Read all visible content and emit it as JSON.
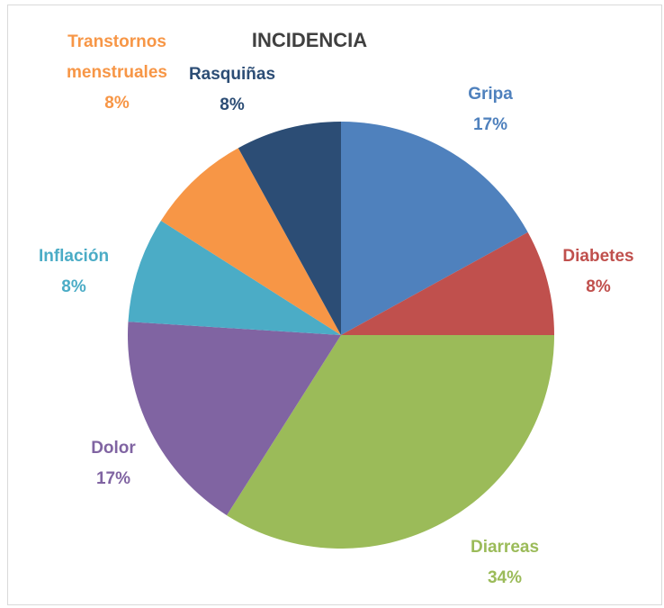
{
  "chart_data": {
    "type": "pie",
    "title": "INCIDENCIA",
    "categories": [
      "Gripa",
      "Diabetes",
      "Diarreas",
      "Dolor",
      "Inflación",
      "Transtornos menstruales",
      "Rasquiñas"
    ],
    "values": [
      17,
      8,
      34,
      17,
      8,
      8,
      8
    ],
    "value_labels": [
      "17%",
      "8%",
      "34%",
      "17%",
      "8%",
      "8%",
      "8%"
    ],
    "colors": [
      "#4f81bd",
      "#c0504d",
      "#9bbb59",
      "#8064a2",
      "#4bacc6",
      "#f79646",
      "#2c4d75"
    ]
  }
}
